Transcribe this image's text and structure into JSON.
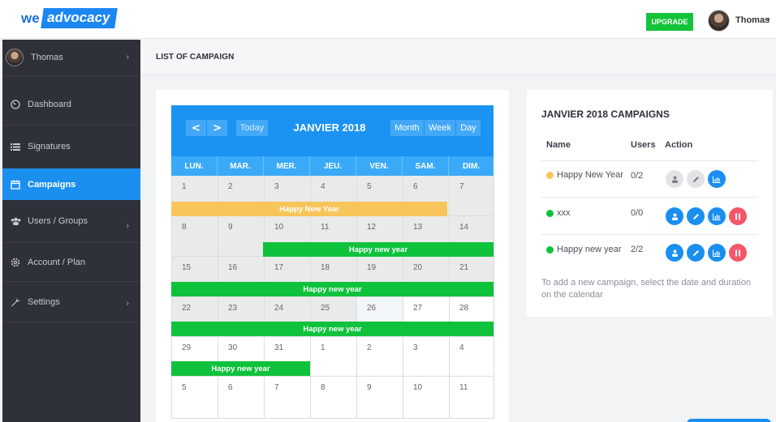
{
  "brand": {
    "part1": "we",
    "part2": "advocacy"
  },
  "topbar": {
    "upgrade_label": "UPGRADE",
    "user_name": "Thomas",
    "caret": "▾"
  },
  "sidebar": {
    "user_name": "Thomas",
    "items": [
      {
        "label": "Dashboard",
        "icon": "dashboard-icon"
      },
      {
        "label": "Signatures",
        "icon": "signature-icon"
      },
      {
        "label": "Campaigns",
        "icon": "calendar-icon",
        "active": true
      },
      {
        "label": "Users / Groups",
        "icon": "users-icon"
      },
      {
        "label": "Account / Plan",
        "icon": "gear-icon"
      },
      {
        "label": "Settings",
        "icon": "wrench-icon"
      }
    ]
  },
  "page": {
    "title": "LIST OF CAMPAIGN"
  },
  "calendar": {
    "title": "JANVIER 2018",
    "prev": "<",
    "next": ">",
    "today": "Today",
    "views": [
      "Month",
      "Week",
      "Day"
    ],
    "weekdays": [
      "LUN.",
      "MAR.",
      "MER.",
      "JEU.",
      "VEN.",
      "SAM.",
      "DIM."
    ],
    "weeks": [
      [
        "1",
        "2",
        "3",
        "4",
        "5",
        "6",
        "7"
      ],
      [
        "8",
        "9",
        "10",
        "11",
        "12",
        "13",
        "14"
      ],
      [
        "15",
        "16",
        "17",
        "18",
        "19",
        "20",
        "21"
      ],
      [
        "22",
        "23",
        "24",
        "25",
        "26",
        "27",
        "28"
      ],
      [
        "29",
        "30",
        "31",
        "1",
        "2",
        "3",
        "4"
      ],
      [
        "5",
        "6",
        "7",
        "8",
        "9",
        "10",
        "11"
      ]
    ],
    "events": [
      {
        "label": "Happy New Year",
        "color": "#f8c55a"
      },
      {
        "label": "Happy new year",
        "color": "#0fc23c"
      },
      {
        "label": "Happy new year",
        "color": "#0fc23c"
      },
      {
        "label": "Happy new year",
        "color": "#0fc23c"
      },
      {
        "label": "Happy new year",
        "color": "#0fc23c"
      }
    ]
  },
  "campaigns": {
    "title": "JANVIER 2018 CAMPAIGNS",
    "headers": {
      "name": "Name",
      "users": "Users",
      "action": "Action"
    },
    "rows": [
      {
        "name": "Happy New Year",
        "users": "0/2",
        "status_color": "#f8c55a"
      },
      {
        "name": "xxx",
        "users": "0/0",
        "status_color": "#0fc23c"
      },
      {
        "name": "Happy new year",
        "users": "2/2",
        "status_color": "#0fc23c"
      }
    ],
    "hint": "To add a new campaign, select the date and duration on the calendar"
  },
  "colors": {
    "accent": "#1b8ff0",
    "sidebar": "#2e3139",
    "success": "#13c43a",
    "danger": "#f4566a"
  }
}
